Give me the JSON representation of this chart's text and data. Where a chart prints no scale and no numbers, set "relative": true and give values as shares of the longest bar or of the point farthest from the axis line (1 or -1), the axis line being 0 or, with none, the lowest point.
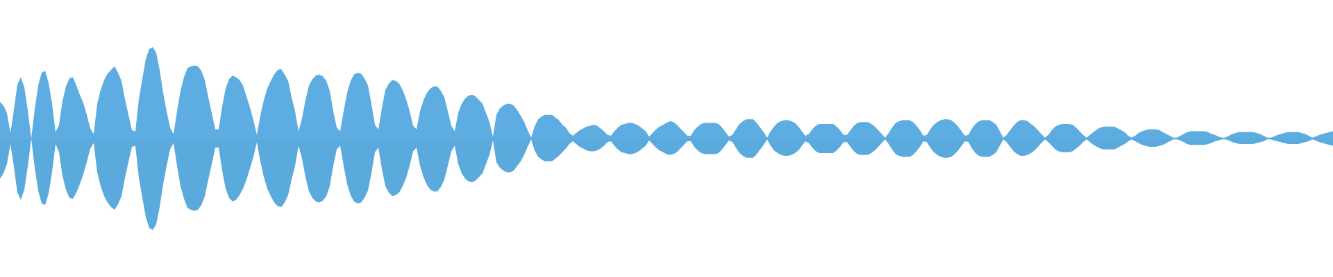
{
  "chart_data": {
    "type": "area",
    "relative": true,
    "categories": [
      null,
      null,
      null,
      null,
      null,
      null,
      null,
      null,
      null,
      null,
      null,
      null,
      null,
      null,
      null,
      null,
      null,
      null,
      null,
      null,
      null,
      null,
      null,
      null,
      null,
      null,
      null,
      null,
      null,
      null,
      null,
      null,
      null,
      null,
      null,
      null,
      null,
      null,
      null,
      null,
      null,
      null,
      null,
      null,
      null,
      null,
      null,
      null,
      null,
      null,
      null,
      null,
      null,
      null,
      null,
      null,
      null,
      null,
      null,
      null,
      null,
      null,
      null,
      null,
      null,
      null,
      null,
      null,
      null,
      null,
      null,
      null,
      null,
      null,
      null,
      null,
      null,
      null,
      null,
      null,
      null,
      null,
      null,
      null,
      null,
      null,
      null,
      null,
      null,
      null,
      null,
      null,
      null,
      null,
      null,
      null,
      null,
      null,
      null,
      null,
      null,
      null,
      null,
      null,
      null,
      null,
      null,
      null,
      null,
      null,
      null,
      null,
      null,
      null,
      null,
      null,
      null,
      null,
      null,
      null,
      null,
      null,
      null,
      null,
      null,
      null,
      null,
      null,
      null,
      null,
      null,
      null,
      null,
      null,
      null,
      null,
      null,
      null,
      null,
      null,
      null,
      null,
      null,
      null,
      null,
      null,
      null,
      null,
      null,
      null,
      null,
      null,
      null,
      null,
      null,
      null,
      null,
      null,
      null,
      null,
      null,
      null,
      null,
      null,
      null,
      null,
      null,
      null,
      null,
      null,
      null,
      null,
      null,
      null,
      null,
      null,
      null,
      null,
      null,
      null,
      null,
      null,
      null,
      null,
      null,
      null,
      null,
      null,
      null,
      null,
      null,
      null,
      null,
      null,
      null,
      null,
      null,
      null,
      null,
      null,
      null,
      null,
      null,
      null,
      null,
      null,
      null,
      null,
      null,
      null,
      null,
      null,
      null,
      null,
      null,
      null,
      null,
      null,
      null,
      null,
      null,
      null,
      null,
      null,
      null,
      null,
      null,
      null,
      null,
      null,
      null,
      null,
      null,
      null,
      null,
      null,
      null,
      null,
      null,
      null,
      null,
      null,
      null,
      null,
      null,
      null,
      null,
      null,
      null,
      null,
      null,
      null,
      null,
      null,
      null,
      null,
      null,
      null,
      null,
      null,
      null,
      null,
      null,
      null,
      null,
      null,
      null,
      null,
      null,
      null,
      null,
      null,
      null,
      null,
      null,
      null,
      null,
      null,
      null,
      null,
      null,
      null,
      null,
      null,
      null,
      null,
      null,
      null,
      null,
      null,
      null,
      null,
      null,
      null,
      null,
      null,
      null,
      null,
      null,
      null,
      null,
      null,
      null,
      null,
      null,
      null,
      null,
      null,
      null,
      null,
      null,
      null,
      null,
      null,
      null,
      null,
      null,
      null,
      null,
      null,
      null,
      null,
      null,
      null,
      null,
      null,
      null,
      null,
      null,
      null,
      null,
      null,
      null,
      null,
      null,
      null,
      null,
      null,
      null,
      null,
      null,
      null,
      null,
      null,
      null,
      null,
      null,
      null,
      null,
      null,
      null,
      null,
      null,
      null,
      null,
      null,
      null,
      null,
      null,
      null,
      null,
      null,
      null,
      null,
      null,
      null,
      null,
      null,
      null,
      null,
      null,
      null,
      null,
      null,
      null,
      null,
      null,
      null,
      null,
      null,
      null,
      null,
      null,
      null,
      null
    ],
    "series": [
      {
        "color": "#5dade2",
        "values": [
          0.4,
          0.36,
          0.28,
          0.06,
          0.31,
          0.59,
          0.67,
          0.56,
          0.31,
          0.0,
          0.32,
          0.58,
          0.72,
          0.74,
          0.61,
          0.38,
          0.07,
          0.15,
          0.41,
          0.57,
          0.66,
          0.67,
          0.58,
          0.48,
          0.39,
          0.26,
          0.11,
          0.05,
          0.38,
          0.53,
          0.64,
          0.71,
          0.75,
          0.79,
          0.72,
          0.63,
          0.43,
          0.26,
          0.09,
          0.08,
          0.43,
          0.65,
          0.87,
          0.98,
          1.0,
          0.94,
          0.75,
          0.5,
          0.3,
          0.12,
          0.05,
          0.3,
          0.52,
          0.67,
          0.77,
          0.79,
          0.8,
          0.79,
          0.74,
          0.64,
          0.45,
          0.28,
          0.1,
          0.1,
          0.35,
          0.55,
          0.65,
          0.69,
          0.67,
          0.64,
          0.58,
          0.46,
          0.34,
          0.2,
          0.04,
          0.25,
          0.42,
          0.55,
          0.63,
          0.7,
          0.75,
          0.76,
          0.7,
          0.63,
          0.45,
          0.3,
          0.08,
          0.22,
          0.42,
          0.58,
          0.65,
          0.69,
          0.7,
          0.68,
          0.63,
          0.52,
          0.3,
          0.12,
          0.08,
          0.3,
          0.5,
          0.63,
          0.7,
          0.72,
          0.71,
          0.66,
          0.58,
          0.38,
          0.15,
          0.1,
          0.33,
          0.53,
          0.6,
          0.64,
          0.63,
          0.6,
          0.53,
          0.43,
          0.3,
          0.14,
          0.1,
          0.3,
          0.42,
          0.5,
          0.55,
          0.57,
          0.57,
          0.52,
          0.45,
          0.3,
          0.14,
          0.08,
          0.28,
          0.38,
          0.44,
          0.47,
          0.48,
          0.46,
          0.42,
          0.38,
          0.28,
          0.18,
          0.02,
          0.26,
          0.33,
          0.36,
          0.38,
          0.38,
          0.36,
          0.31,
          0.25,
          0.18,
          0.09,
          0.01,
          0.13,
          0.21,
          0.24,
          0.26,
          0.26,
          0.26,
          0.23,
          0.2,
          0.15,
          0.12,
          0.06,
          0.03,
          0.06,
          0.09,
          0.11,
          0.13,
          0.14,
          0.15,
          0.14,
          0.11,
          0.08,
          0.04,
          0.03,
          0.08,
          0.12,
          0.15,
          0.16,
          0.17,
          0.17,
          0.16,
          0.14,
          0.11,
          0.08,
          0.02,
          0.06,
          0.1,
          0.13,
          0.15,
          0.17,
          0.19,
          0.18,
          0.15,
          0.11,
          0.07,
          0.03,
          0.03,
          0.09,
          0.13,
          0.16,
          0.17,
          0.17,
          0.17,
          0.17,
          0.16,
          0.12,
          0.07,
          0.02,
          0.04,
          0.1,
          0.16,
          0.19,
          0.21,
          0.21,
          0.21,
          0.17,
          0.12,
          0.07,
          0.01,
          0.08,
          0.13,
          0.17,
          0.19,
          0.2,
          0.2,
          0.19,
          0.17,
          0.13,
          0.08,
          0.03,
          0.05,
          0.1,
          0.14,
          0.16,
          0.16,
          0.16,
          0.16,
          0.16,
          0.13,
          0.09,
          0.04,
          0.04,
          0.09,
          0.14,
          0.17,
          0.18,
          0.18,
          0.18,
          0.16,
          0.13,
          0.09,
          0.05,
          0.01,
          0.06,
          0.12,
          0.17,
          0.19,
          0.2,
          0.2,
          0.2,
          0.18,
          0.14,
          0.09,
          0.03,
          0.04,
          0.1,
          0.15,
          0.18,
          0.2,
          0.21,
          0.21,
          0.2,
          0.17,
          0.13,
          0.08,
          0.03,
          0.04,
          0.11,
          0.16,
          0.19,
          0.2,
          0.2,
          0.2,
          0.18,
          0.15,
          0.08,
          0.01,
          0.04,
          0.09,
          0.14,
          0.18,
          0.2,
          0.2,
          0.19,
          0.16,
          0.13,
          0.09,
          0.05,
          0.01,
          0.04,
          0.09,
          0.13,
          0.15,
          0.16,
          0.16,
          0.16,
          0.15,
          0.12,
          0.08,
          0.04,
          0.01,
          0.04,
          0.07,
          0.1,
          0.12,
          0.13,
          0.13,
          0.13,
          0.13,
          0.11,
          0.09,
          0.07,
          0.03,
          0.01,
          0.03,
          0.06,
          0.08,
          0.09,
          0.1,
          0.1,
          0.1,
          0.09,
          0.07,
          0.05,
          0.03,
          0.01,
          0.01,
          0.03,
          0.05,
          0.07,
          0.08,
          0.08,
          0.08,
          0.08,
          0.08,
          0.07,
          0.05,
          0.04,
          0.02,
          0.01,
          0.01,
          0.03,
          0.05,
          0.06,
          0.07,
          0.07,
          0.07,
          0.07,
          0.07,
          0.06,
          0.05,
          0.03,
          0.01,
          0.01,
          0.02,
          0.04,
          0.05,
          0.06,
          0.07,
          0.07,
          0.07,
          0.07,
          0.06,
          0.05,
          0.03,
          0.01,
          0.02,
          0.04,
          0.05,
          0.06,
          0.07,
          0.08
        ]
      },
      {
        "color": "#5aaade",
        "values": [
          -0.44,
          -0.38,
          -0.28,
          -0.06,
          -0.31,
          -0.59,
          -0.67,
          -0.56,
          -0.31,
          0.0,
          -0.32,
          -0.57,
          -0.71,
          -0.73,
          -0.6,
          -0.37,
          -0.06,
          -0.15,
          -0.41,
          -0.56,
          -0.65,
          -0.66,
          -0.59,
          -0.5,
          -0.39,
          -0.26,
          -0.11,
          -0.05,
          -0.37,
          -0.52,
          -0.63,
          -0.7,
          -0.75,
          -0.78,
          -0.72,
          -0.63,
          -0.43,
          -0.26,
          -0.09,
          -0.08,
          -0.43,
          -0.65,
          -0.86,
          -0.98,
          -1.0,
          -0.94,
          -0.75,
          -0.5,
          -0.3,
          -0.12,
          -0.05,
          -0.3,
          -0.52,
          -0.66,
          -0.76,
          -0.78,
          -0.79,
          -0.78,
          -0.73,
          -0.63,
          -0.45,
          -0.28,
          -0.1,
          -0.1,
          -0.35,
          -0.55,
          -0.65,
          -0.69,
          -0.67,
          -0.62,
          -0.55,
          -0.45,
          -0.33,
          -0.2,
          -0.04,
          -0.25,
          -0.42,
          -0.55,
          -0.63,
          -0.7,
          -0.74,
          -0.75,
          -0.7,
          -0.62,
          -0.45,
          -0.3,
          -0.08,
          -0.22,
          -0.42,
          -0.58,
          -0.65,
          -0.69,
          -0.7,
          -0.68,
          -0.63,
          -0.52,
          -0.3,
          -0.12,
          -0.08,
          -0.3,
          -0.5,
          -0.62,
          -0.69,
          -0.71,
          -0.7,
          -0.65,
          -0.57,
          -0.38,
          -0.15,
          -0.1,
          -0.33,
          -0.52,
          -0.59,
          -0.63,
          -0.62,
          -0.59,
          -0.52,
          -0.43,
          -0.3,
          -0.14,
          -0.1,
          -0.3,
          -0.42,
          -0.51,
          -0.56,
          -0.58,
          -0.58,
          -0.53,
          -0.45,
          -0.3,
          -0.14,
          -0.08,
          -0.28,
          -0.38,
          -0.44,
          -0.47,
          -0.48,
          -0.46,
          -0.42,
          -0.38,
          -0.28,
          -0.18,
          -0.02,
          -0.26,
          -0.32,
          -0.35,
          -0.37,
          -0.37,
          -0.35,
          -0.3,
          -0.25,
          -0.18,
          -0.09,
          -0.01,
          -0.13,
          -0.2,
          -0.23,
          -0.25,
          -0.25,
          -0.25,
          -0.22,
          -0.19,
          -0.15,
          -0.11,
          -0.06,
          -0.03,
          -0.06,
          -0.09,
          -0.11,
          -0.13,
          -0.14,
          -0.14,
          -0.13,
          -0.11,
          -0.08,
          -0.04,
          -0.03,
          -0.08,
          -0.12,
          -0.15,
          -0.16,
          -0.17,
          -0.17,
          -0.16,
          -0.14,
          -0.11,
          -0.08,
          -0.02,
          -0.06,
          -0.1,
          -0.13,
          -0.15,
          -0.17,
          -0.18,
          -0.17,
          -0.15,
          -0.11,
          -0.07,
          -0.03,
          -0.03,
          -0.09,
          -0.13,
          -0.16,
          -0.17,
          -0.17,
          -0.17,
          -0.17,
          -0.16,
          -0.12,
          -0.07,
          -0.02,
          -0.04,
          -0.1,
          -0.16,
          -0.19,
          -0.21,
          -0.21,
          -0.21,
          -0.17,
          -0.12,
          -0.07,
          -0.01,
          -0.08,
          -0.13,
          -0.16,
          -0.18,
          -0.19,
          -0.19,
          -0.18,
          -0.16,
          -0.13,
          -0.08,
          -0.03,
          -0.05,
          -0.1,
          -0.14,
          -0.16,
          -0.16,
          -0.16,
          -0.16,
          -0.16,
          -0.13,
          -0.09,
          -0.04,
          -0.04,
          -0.09,
          -0.14,
          -0.17,
          -0.18,
          -0.18,
          -0.18,
          -0.16,
          -0.13,
          -0.09,
          -0.05,
          -0.01,
          -0.06,
          -0.12,
          -0.17,
          -0.19,
          -0.2,
          -0.2,
          -0.2,
          -0.18,
          -0.14,
          -0.09,
          -0.03,
          -0.04,
          -0.1,
          -0.15,
          -0.18,
          -0.2,
          -0.21,
          -0.21,
          -0.2,
          -0.17,
          -0.13,
          -0.08,
          -0.03,
          -0.04,
          -0.11,
          -0.16,
          -0.19,
          -0.2,
          -0.2,
          -0.2,
          -0.18,
          -0.15,
          -0.08,
          -0.01,
          -0.04,
          -0.09,
          -0.14,
          -0.17,
          -0.19,
          -0.19,
          -0.18,
          -0.16,
          -0.13,
          -0.09,
          -0.05,
          -0.01,
          -0.04,
          -0.08,
          -0.12,
          -0.14,
          -0.15,
          -0.15,
          -0.15,
          -0.14,
          -0.11,
          -0.08,
          -0.04,
          -0.01,
          -0.04,
          -0.07,
          -0.09,
          -0.11,
          -0.12,
          -0.12,
          -0.12,
          -0.12,
          -0.1,
          -0.08,
          -0.06,
          -0.03,
          -0.01,
          -0.03,
          -0.05,
          -0.07,
          -0.08,
          -0.09,
          -0.09,
          -0.09,
          -0.08,
          -0.07,
          -0.05,
          -0.03,
          -0.01,
          -0.01,
          -0.02,
          -0.04,
          -0.06,
          -0.07,
          -0.07,
          -0.07,
          -0.07,
          -0.07,
          -0.06,
          -0.05,
          -0.03,
          -0.02,
          -0.01,
          -0.01,
          -0.02,
          -0.04,
          -0.05,
          -0.06,
          -0.06,
          -0.06,
          -0.06,
          -0.06,
          -0.05,
          -0.04,
          -0.03,
          -0.01,
          -0.01,
          -0.02,
          -0.03,
          -0.04,
          -0.05,
          -0.06,
          -0.06,
          -0.06,
          -0.06,
          -0.05,
          -0.04,
          -0.03,
          -0.01,
          -0.02,
          -0.04,
          -0.05,
          -0.06,
          -0.07,
          -0.08
        ]
      }
    ],
    "ref_lines": [
      {
        "axis": "y",
        "value": 0,
        "color": "#5dade2"
      }
    ]
  }
}
